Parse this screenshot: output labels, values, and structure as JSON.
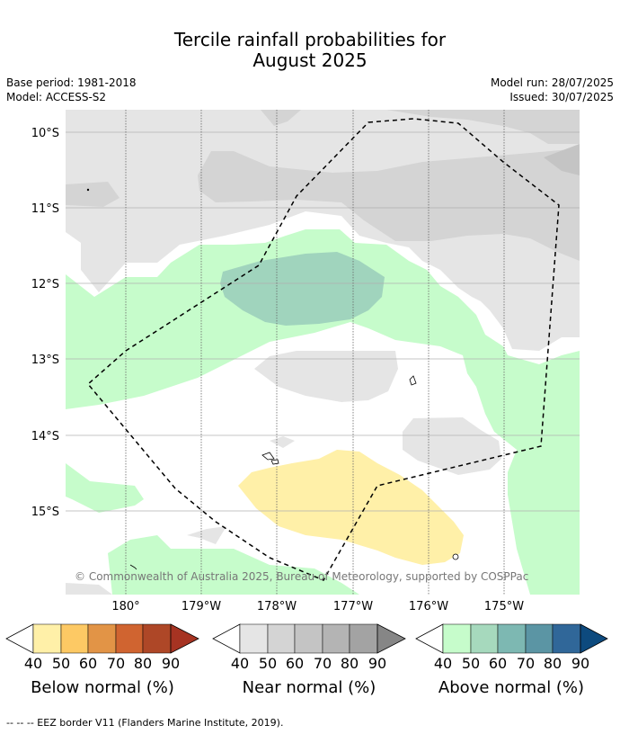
{
  "title_line1": "Tercile rainfall probabilities for",
  "title_line2": "August 2025",
  "base_period": "Base period: 1981-2018",
  "model": "Model: ACCESS-S2",
  "model_run": "Model run: 28/07/2025",
  "issued": "Issued: 30/07/2025",
  "lat_labels": [
    "10°S",
    "11°S",
    "12°S",
    "13°S",
    "14°S",
    "15°S"
  ],
  "lon_labels": [
    "180°",
    "179°W",
    "178°W",
    "177°W",
    "176°W",
    "175°W"
  ],
  "copyright": "© Commonwealth of Australia 2025, Bureau of Meteorology, supported by COSPPac",
  "colorbars": [
    {
      "title": "Below normal (%)",
      "ticks": [
        "40",
        "50",
        "60",
        "70",
        "80",
        "90"
      ],
      "colors": [
        "#fff0a8",
        "#fdc964",
        "#e29446",
        "#d06430",
        "#ae4727",
        "#a63322"
      ]
    },
    {
      "title": "Near normal (%)",
      "ticks": [
        "40",
        "50",
        "60",
        "70",
        "80",
        "90"
      ],
      "colors": [
        "#e5e5e5",
        "#d4d4d4",
        "#c4c4c4",
        "#b4b4b4",
        "#a3a3a3",
        "#868686"
      ]
    },
    {
      "title": "Above normal (%)",
      "ticks": [
        "40",
        "50",
        "60",
        "70",
        "80",
        "90"
      ],
      "colors": [
        "#c6fccb",
        "#a6d9bd",
        "#7db8b2",
        "#5b95a4",
        "#306799",
        "#0d4a7e"
      ]
    }
  ],
  "footnote": "--  --  -- EEZ border V11 (Flanders Marine Institute, 2019)."
}
